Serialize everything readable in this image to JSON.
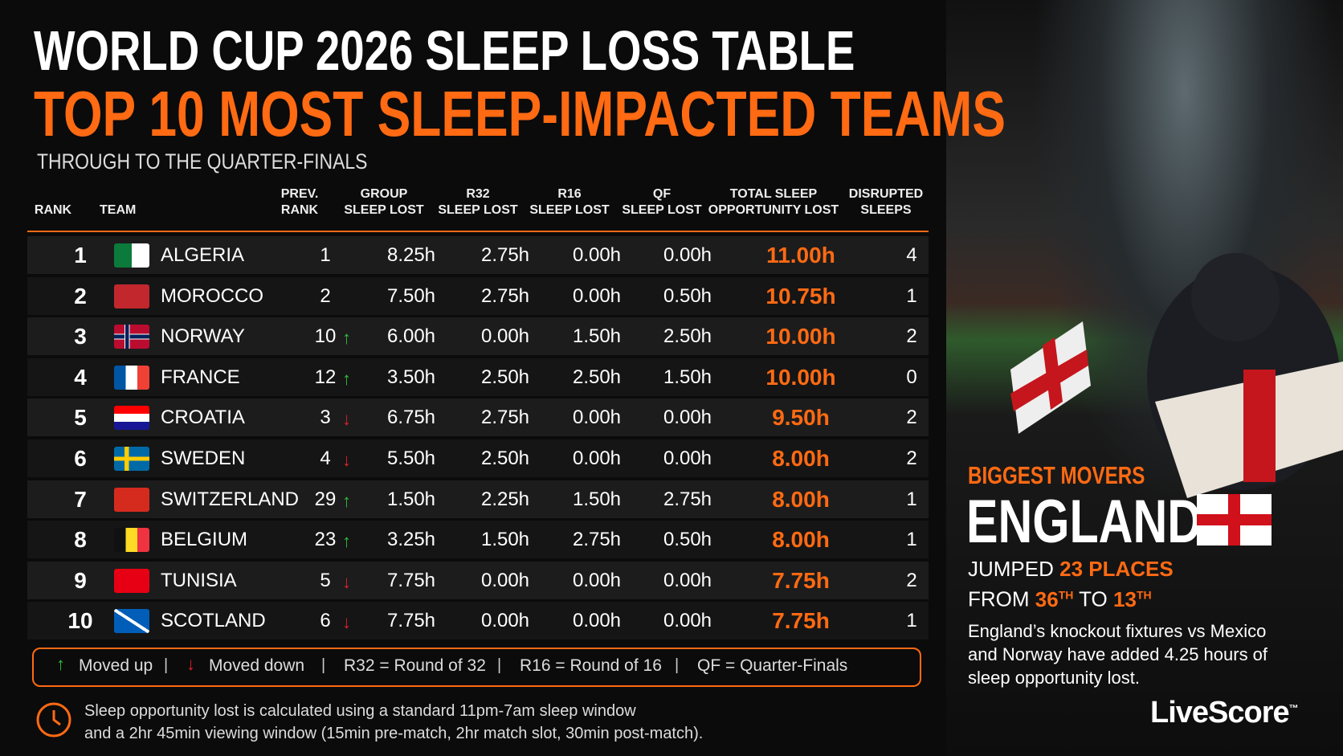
{
  "header": {
    "title": "WORLD CUP 2026 SLEEP LOSS TABLE",
    "subtitle": "TOP 10 MOST SLEEP-IMPACTED TEAMS",
    "caption": "THROUGH TO THE QUARTER-FINALS"
  },
  "table": {
    "columns": [
      [
        "RANK"
      ],
      [
        "TEAM"
      ],
      [
        "PREV.",
        "RANK"
      ],
      [
        "GROUP",
        "SLEEP LOST"
      ],
      [
        "R32",
        "SLEEP LOST"
      ],
      [
        "R16",
        "SLEEP LOST"
      ],
      [
        "QF",
        "SLEEP LOST"
      ],
      [
        "TOTAL SLEEP",
        "OPPORTUNITY LOST"
      ],
      [
        "DISRUPTED",
        "SLEEPS"
      ]
    ],
    "rows": [
      [
        "1",
        "ALGERIA",
        "1",
        "8.25h",
        "2.75h",
        "0.00h",
        "0.00h",
        "11.00h",
        "4"
      ],
      [
        "2",
        "MOROCCO",
        "2",
        "7.50h",
        "2.75h",
        "0.00h",
        "0.50h",
        "10.75h",
        "1"
      ],
      [
        "3",
        "NORWAY",
        "10",
        "6.00h",
        "0.00h",
        "1.50h",
        "2.50h",
        "10.00h",
        "2"
      ],
      [
        "4",
        "FRANCE",
        "12",
        "3.50h",
        "2.50h",
        "2.50h",
        "1.50h",
        "10.00h",
        "0"
      ],
      [
        "5",
        "CROATIA",
        "3",
        "6.75h",
        "2.75h",
        "0.00h",
        "0.00h",
        "9.50h",
        "2"
      ],
      [
        "6",
        "SWEDEN",
        "4",
        "5.50h",
        "2.50h",
        "0.00h",
        "0.00h",
        "8.00h",
        "2"
      ],
      [
        "7",
        "SWITZERLAND",
        "29",
        "1.50h",
        "2.25h",
        "1.50h",
        "2.75h",
        "8.00h",
        "1"
      ],
      [
        "8",
        "BELGIUM",
        "23",
        "3.25h",
        "1.50h",
        "2.75h",
        "0.50h",
        "8.00h",
        "1"
      ],
      [
        "9",
        "TUNISIA",
        "5",
        "7.75h",
        "0.00h",
        "0.00h",
        "0.00h",
        "7.75h",
        "2"
      ],
      [
        "10",
        "SCOTLAND",
        "6",
        "7.75h",
        "0.00h",
        "0.00h",
        "0.00h",
        "7.75h",
        "1"
      ]
    ],
    "trend": [
      "none",
      "none",
      "up",
      "up",
      "down",
      "down",
      "up",
      "up",
      "down",
      "down"
    ]
  },
  "legend": [
    "Moved up",
    "Moved down",
    "R32 = Round of 32",
    "R16 = Round of 16",
    "QF = Quarter-Finals"
  ],
  "footnote": [
    "Sleep opportunity lost is calculated using a standard 11pm-7am sleep window",
    "and a 2hr 45min viewing window (15min pre-match, 2hr match slot, 30min post-match)."
  ],
  "panel": {
    "kicker": "BIGGEST MOVERS",
    "team": "ENGLAND",
    "jumped": "JUMPED",
    "places": "23 PLACES",
    "from": "FROM",
    "from_rank": "36",
    "from_suffix": "TH",
    "to": "TO",
    "to_rank": "13",
    "to_suffix": "TH",
    "description": [
      "England’s knockout fixtures vs Mexico",
      "and Norway have added 4.25 hours of",
      "sleep opportunity lost."
    ]
  },
  "logo": {
    "name": "LiveScore",
    "mark": "™"
  }
}
